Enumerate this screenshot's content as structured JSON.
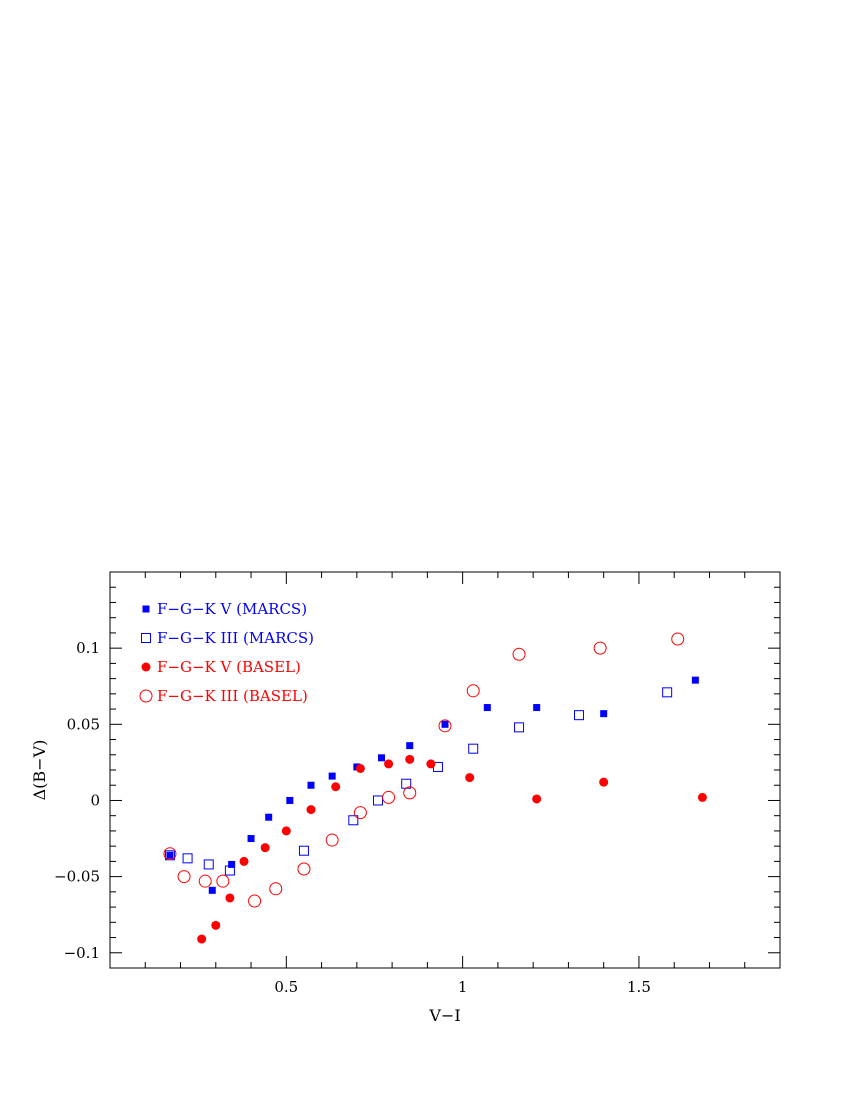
{
  "chart_data": {
    "type": "scatter",
    "xlabel": "V−I",
    "ylabel": "Δ(B−V)",
    "xlim": [
      0.0,
      1.9
    ],
    "ylim": [
      -0.11,
      0.15
    ],
    "xticks_major": [
      0.5,
      1,
      1.5
    ],
    "xtick_labels": [
      "0.5",
      "1",
      "1.5"
    ],
    "yticks_major": [
      -0.1,
      -0.05,
      0,
      0.05,
      0.1
    ],
    "ytick_labels": [
      "−0.1",
      "−0.05",
      "0",
      "0.05",
      "0.1"
    ],
    "xticks_minor_step": 0.1,
    "yticks_minor_step": 0.01,
    "grid": false,
    "legend_position": "top-left",
    "series": [
      {
        "name": "F−G−K V   (MARCS)",
        "marker": "filled-square",
        "color": "#0000ff",
        "points": [
          [
            0.17,
            -0.036
          ],
          [
            0.29,
            -0.059
          ],
          [
            0.345,
            -0.042
          ],
          [
            0.4,
            -0.025
          ],
          [
            0.45,
            -0.011
          ],
          [
            0.51,
            0.0
          ],
          [
            0.57,
            0.01
          ],
          [
            0.63,
            0.016
          ],
          [
            0.7,
            0.022
          ],
          [
            0.77,
            0.028
          ],
          [
            0.85,
            0.036
          ],
          [
            0.95,
            0.05
          ],
          [
            1.07,
            0.061
          ],
          [
            1.21,
            0.061
          ],
          [
            1.4,
            0.057
          ],
          [
            1.66,
            0.079
          ]
        ]
      },
      {
        "name": "F−G−K III (MARCS)",
        "marker": "open-square",
        "color": "#0000ff",
        "points": [
          [
            0.17,
            -0.036
          ],
          [
            0.22,
            -0.038
          ],
          [
            0.28,
            -0.042
          ],
          [
            0.34,
            -0.046
          ],
          [
            0.55,
            -0.033
          ],
          [
            0.69,
            -0.013
          ],
          [
            0.76,
            0.0
          ],
          [
            0.84,
            0.011
          ],
          [
            0.93,
            0.022
          ],
          [
            1.03,
            0.034
          ],
          [
            1.16,
            0.048
          ],
          [
            1.33,
            0.056
          ],
          [
            1.58,
            0.071
          ]
        ]
      },
      {
        "name": "F−G−K V   (BASEL)",
        "marker": "filled-circle",
        "color": "#ff0000",
        "points": [
          [
            0.26,
            -0.091
          ],
          [
            0.3,
            -0.082
          ],
          [
            0.34,
            -0.064
          ],
          [
            0.38,
            -0.04
          ],
          [
            0.44,
            -0.031
          ],
          [
            0.5,
            -0.02
          ],
          [
            0.57,
            -0.006
          ],
          [
            0.64,
            0.009
          ],
          [
            0.71,
            0.021
          ],
          [
            0.79,
            0.024
          ],
          [
            0.85,
            0.027
          ],
          [
            0.91,
            0.024
          ],
          [
            1.02,
            0.015
          ],
          [
            1.21,
            0.001
          ],
          [
            1.4,
            0.012
          ],
          [
            1.68,
            0.002
          ]
        ]
      },
      {
        "name": "F−G−K III (BASEL)",
        "marker": "open-circle",
        "color": "#ff0000",
        "points": [
          [
            0.17,
            -0.035
          ],
          [
            0.21,
            -0.05
          ],
          [
            0.27,
            -0.053
          ],
          [
            0.32,
            -0.053
          ],
          [
            0.41,
            -0.066
          ],
          [
            0.47,
            -0.058
          ],
          [
            0.55,
            -0.045
          ],
          [
            0.63,
            -0.026
          ],
          [
            0.71,
            -0.008
          ],
          [
            0.79,
            0.002
          ],
          [
            0.85,
            0.005
          ],
          [
            0.95,
            0.049
          ],
          [
            1.03,
            0.072
          ],
          [
            1.16,
            0.096
          ],
          [
            1.39,
            0.1
          ],
          [
            1.61,
            0.106
          ]
        ]
      }
    ]
  }
}
